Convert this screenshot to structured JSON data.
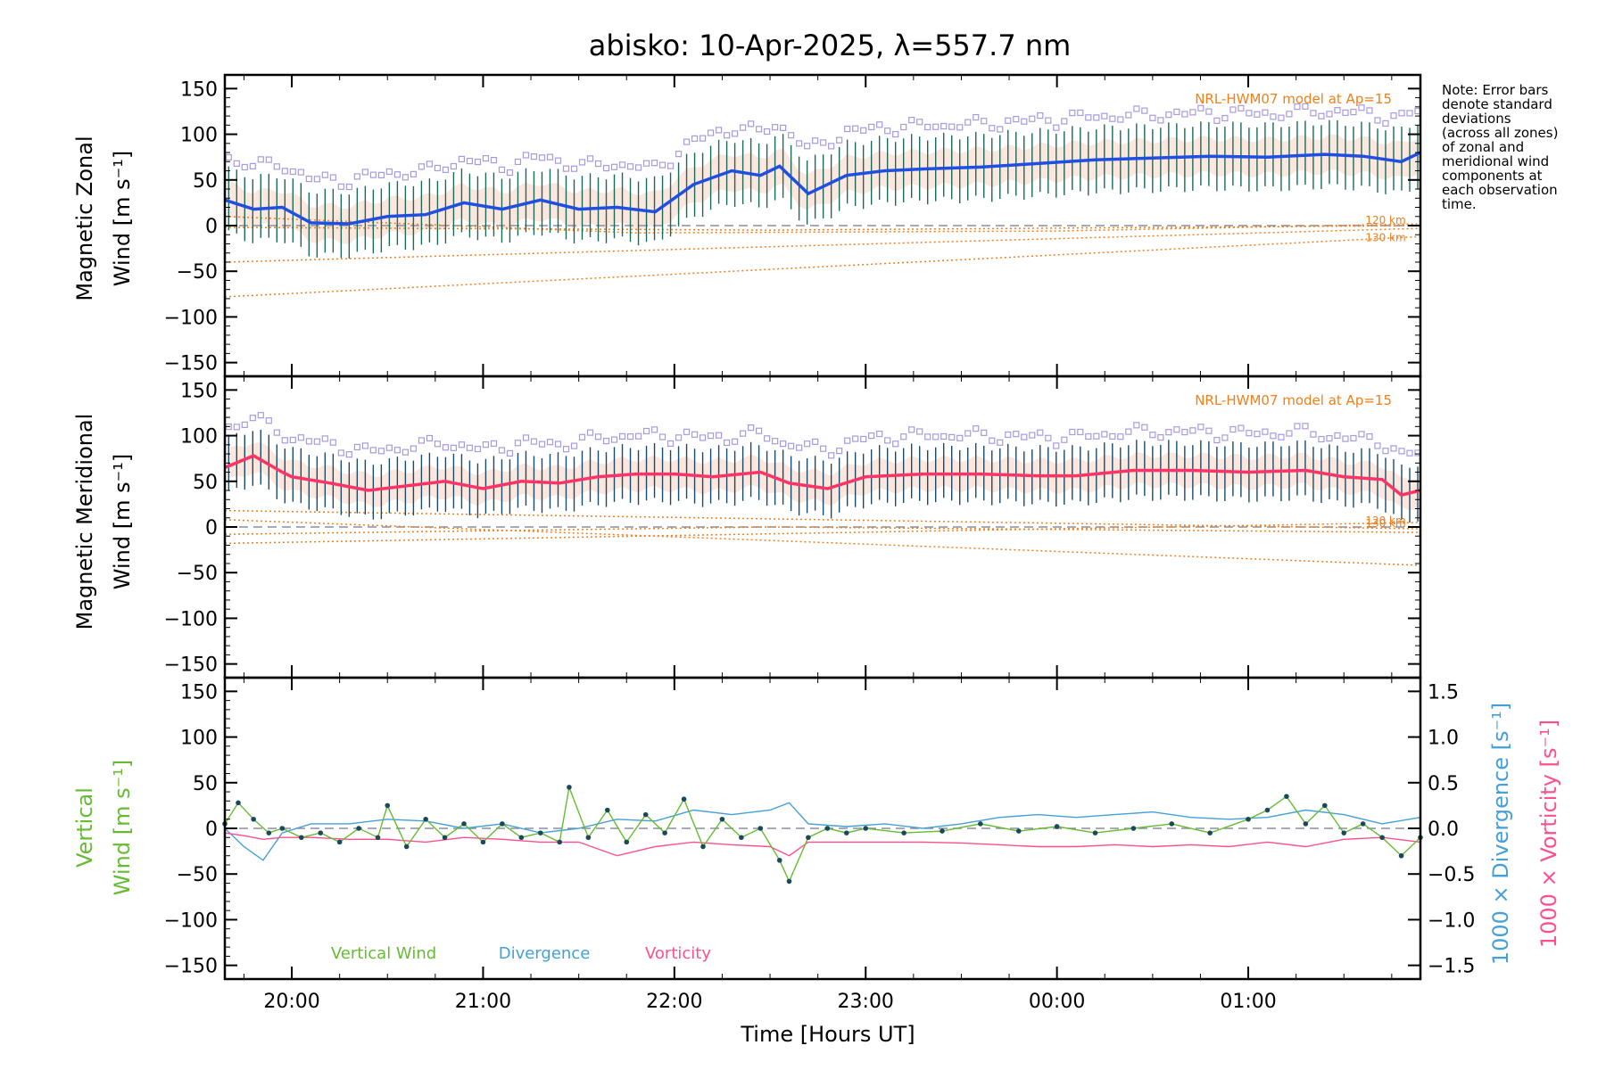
{
  "title": "abisko: 10-Apr-2025, λ=557.7 nm",
  "note": [
    "Note: Error bars",
    "denote standard",
    "deviations",
    "(across all zones)",
    "of zonal and",
    "meridional wind",
    "components at",
    "each observation",
    "time."
  ],
  "colors": {
    "zonal": "#1f4fe0",
    "meridional": "#ff3366",
    "vertical": "#66bb33",
    "divergence": "#44a0d8",
    "vorticity": "#ff4f8f",
    "model": "#f07f1c",
    "errorbar": "#1a5a6a",
    "outlier": "#a79be0"
  },
  "chart_data": [
    {
      "type": "line",
      "panel": "zonal",
      "ylabel": [
        "Magnetic Zonal",
        "Wind [m s⁻¹]"
      ],
      "ylim": [
        -165,
        165
      ],
      "yticks": [
        150,
        100,
        50,
        0,
        -50,
        -100,
        -150
      ],
      "model_label": "NRL-HWM07 model at Ap=15",
      "model_alt_labels": [
        "120 km",
        "130 km"
      ],
      "series": [
        {
          "x": [
            19.65,
            19.8,
            19.95,
            20.1,
            20.3,
            20.5,
            20.7,
            20.9,
            21.1,
            21.3,
            21.5,
            21.7,
            21.9,
            22.1,
            22.3,
            22.45,
            22.55,
            22.7,
            22.9,
            23.1,
            23.3,
            23.6,
            23.9,
            24.2,
            24.5,
            24.8,
            25.1,
            25.4,
            25.6,
            25.8,
            25.9
          ],
          "y": [
            28,
            18,
            20,
            3,
            2,
            10,
            12,
            25,
            18,
            28,
            18,
            20,
            15,
            45,
            60,
            55,
            65,
            35,
            55,
            60,
            62,
            64,
            68,
            72,
            74,
            76,
            75,
            78,
            76,
            70,
            80
          ]
        }
      ],
      "model_lines": [
        {
          "name": "120 km",
          "x": [
            19.65,
            25.9
          ],
          "y": [
            -40,
            -3
          ]
        },
        {
          "name": "130 km",
          "x": [
            19.65,
            25.9
          ],
          "y": [
            -78,
            -12
          ]
        },
        {
          "name": "",
          "x": [
            19.65,
            21.8,
            24.0,
            25.9
          ],
          "y": [
            10,
            -8,
            -6,
            2
          ]
        },
        {
          "name": "",
          "x": [
            19.65,
            22.5,
            25.9
          ],
          "y": [
            -2,
            -5,
            0
          ]
        }
      ],
      "errorbar_sigma": 35
    },
    {
      "type": "line",
      "panel": "meridional",
      "ylabel": [
        "Magnetic Meridional",
        "Wind [m s⁻¹]"
      ],
      "ylim": [
        -165,
        165
      ],
      "yticks": [
        150,
        100,
        50,
        0,
        -50,
        -100,
        -150
      ],
      "model_label": "NRL-HWM07 model at Ap=15",
      "model_alt_labels": [
        "120 km",
        "130 km"
      ],
      "series": [
        {
          "x": [
            19.65,
            19.8,
            19.95,
            20.0,
            20.2,
            20.4,
            20.6,
            20.8,
            21.0,
            21.2,
            21.4,
            21.6,
            21.8,
            22.0,
            22.2,
            22.45,
            22.6,
            22.8,
            23.0,
            23.3,
            23.6,
            23.9,
            24.1,
            24.4,
            24.7,
            25.0,
            25.3,
            25.5,
            25.7,
            25.8,
            25.9
          ],
          "y": [
            65,
            78,
            60,
            55,
            48,
            40,
            45,
            50,
            42,
            50,
            48,
            55,
            58,
            58,
            55,
            60,
            48,
            42,
            55,
            58,
            58,
            56,
            56,
            62,
            62,
            60,
            62,
            55,
            52,
            35,
            40
          ]
        }
      ],
      "model_lines": [
        {
          "name": "120 km",
          "x": [
            19.65,
            25.9
          ],
          "y": [
            18,
            -2
          ]
        },
        {
          "name": "130 km",
          "x": [
            19.65,
            25.9
          ],
          "y": [
            -18,
            5
          ]
        },
        {
          "name": "",
          "x": [
            19.65,
            25.9
          ],
          "y": [
            8,
            -42
          ]
        },
        {
          "name": "",
          "x": [
            19.65,
            22.5,
            25.9
          ],
          "y": [
            -8,
            0,
            -6
          ]
        }
      ],
      "errorbar_sigma": 30
    },
    {
      "type": "line",
      "panel": "vertical",
      "ylabel_left": [
        "Vertical",
        "Wind [m s⁻¹]"
      ],
      "ylabel_right1": "1000 × Divergence [s⁻¹]",
      "ylabel_right2": "1000 × Vorticity [s⁻¹]",
      "ylim": [
        -165,
        165
      ],
      "yticks": [
        150,
        100,
        50,
        0,
        -50,
        -100,
        -150
      ],
      "y2lim": [
        -1.65,
        1.65
      ],
      "y2ticks": [
        "1.5",
        "1.0",
        "0.5",
        "0.0",
        "−0.5",
        "−1.0",
        "−1.5"
      ],
      "legend": [
        "Vertical Wind",
        "Divergence",
        "Vorticity"
      ],
      "series": [
        {
          "name": "Vertical Wind",
          "x": [
            19.65,
            19.72,
            19.8,
            19.88,
            19.95,
            20.05,
            20.15,
            20.25,
            20.35,
            20.45,
            20.5,
            20.6,
            20.7,
            20.8,
            20.9,
            21.0,
            21.1,
            21.2,
            21.3,
            21.4,
            21.45,
            21.55,
            21.65,
            21.75,
            21.85,
            21.95,
            22.05,
            22.15,
            22.25,
            22.35,
            22.45,
            22.55,
            22.6,
            22.7,
            22.8,
            22.9,
            23.0,
            23.2,
            23.4,
            23.6,
            23.8,
            24.0,
            24.2,
            24.4,
            24.6,
            24.8,
            25.0,
            25.1,
            25.2,
            25.3,
            25.4,
            25.5,
            25.6,
            25.7,
            25.8,
            25.9
          ],
          "y": [
            5,
            28,
            10,
            -5,
            0,
            -10,
            -5,
            -15,
            0,
            -10,
            25,
            -20,
            10,
            -10,
            5,
            -15,
            5,
            -10,
            -5,
            -15,
            45,
            -10,
            20,
            -15,
            15,
            -5,
            32,
            -20,
            10,
            -10,
            0,
            -35,
            -58,
            -10,
            0,
            -5,
            0,
            -5,
            -3,
            5,
            -3,
            2,
            -5,
            0,
            5,
            -5,
            10,
            20,
            35,
            5,
            25,
            -5,
            5,
            -10,
            -30,
            -10
          ]
        },
        {
          "name": "Divergence",
          "x": [
            19.65,
            19.75,
            19.85,
            19.95,
            20.1,
            20.3,
            20.5,
            20.7,
            20.9,
            21.1,
            21.3,
            21.5,
            21.7,
            21.9,
            22.1,
            22.3,
            22.5,
            22.6,
            22.7,
            22.9,
            23.1,
            23.3,
            23.5,
            23.7,
            23.9,
            24.1,
            24.3,
            24.5,
            24.7,
            24.9,
            25.1,
            25.3,
            25.5,
            25.7,
            25.9
          ],
          "y": [
            0.0,
            -0.2,
            -0.35,
            -0.05,
            0.05,
            0.05,
            0.1,
            0.08,
            0.0,
            0.05,
            -0.05,
            0.0,
            0.1,
            0.08,
            0.2,
            0.15,
            0.2,
            0.28,
            0.05,
            0.02,
            0.05,
            0.0,
            0.05,
            0.12,
            0.15,
            0.12,
            0.15,
            0.18,
            0.12,
            0.1,
            0.12,
            0.2,
            0.15,
            0.05,
            0.12
          ]
        },
        {
          "name": "Vorticity",
          "x": [
            19.65,
            19.75,
            19.85,
            19.95,
            20.1,
            20.3,
            20.5,
            20.7,
            20.9,
            21.1,
            21.3,
            21.5,
            21.7,
            21.9,
            22.1,
            22.3,
            22.5,
            22.6,
            22.7,
            22.9,
            23.1,
            23.3,
            23.5,
            23.7,
            23.9,
            24.1,
            24.3,
            24.5,
            24.7,
            24.9,
            25.1,
            25.3,
            25.5,
            25.7,
            25.9
          ],
          "y": [
            -0.05,
            -0.08,
            -0.12,
            -0.1,
            -0.1,
            -0.12,
            -0.12,
            -0.15,
            -0.1,
            -0.12,
            -0.15,
            -0.15,
            -0.3,
            -0.2,
            -0.15,
            -0.18,
            -0.2,
            -0.3,
            -0.15,
            -0.15,
            -0.15,
            -0.15,
            -0.16,
            -0.18,
            -0.2,
            -0.2,
            -0.18,
            -0.2,
            -0.18,
            -0.2,
            -0.15,
            -0.2,
            -0.12,
            -0.1,
            -0.15
          ]
        }
      ]
    }
  ],
  "xaxis": {
    "xlabel": "Time [Hours UT]",
    "xlim": [
      19.65,
      25.9
    ],
    "ticks": [
      {
        "x": 20,
        "label": "20:00"
      },
      {
        "x": 21,
        "label": "21:00"
      },
      {
        "x": 22,
        "label": "22:00"
      },
      {
        "x": 23,
        "label": "23:00"
      },
      {
        "x": 24,
        "label": "00:00"
      },
      {
        "x": 25,
        "label": "01:00"
      }
    ]
  }
}
